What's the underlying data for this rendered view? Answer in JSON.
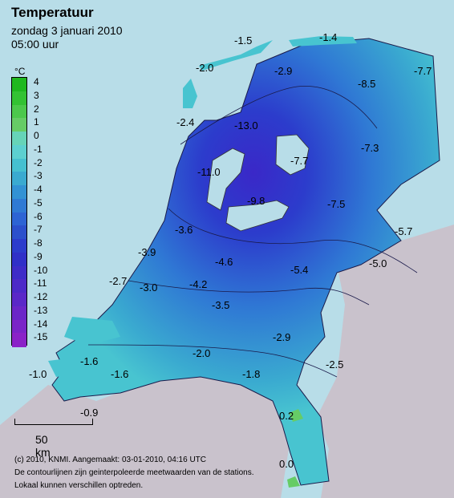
{
  "title": "Temperatuur",
  "date": "zondag 3 januari 2010",
  "time": "05:00 uur",
  "unit": "°C",
  "legend": [
    {
      "value": "4",
      "color": "#1fb81f"
    },
    {
      "value": "3",
      "color": "#33c233"
    },
    {
      "value": "2",
      "color": "#4cc84c"
    },
    {
      "value": "1",
      "color": "#66cc66"
    },
    {
      "value": "0",
      "color": "#66d4b8"
    },
    {
      "value": "-1",
      "color": "#5cd0d0"
    },
    {
      "value": "-2",
      "color": "#45c0d0"
    },
    {
      "value": "-3",
      "color": "#3aaad0"
    },
    {
      "value": "-4",
      "color": "#3292d4"
    },
    {
      "value": "-5",
      "color": "#2f7ad4"
    },
    {
      "value": "-6",
      "color": "#2d64d4"
    },
    {
      "value": "-7",
      "color": "#2b50cc"
    },
    {
      "value": "-8",
      "color": "#2c3ccc"
    },
    {
      "value": "-9",
      "color": "#3030c8"
    },
    {
      "value": "-10",
      "color": "#3e2cc8"
    },
    {
      "value": "-11",
      "color": "#4c2ac8"
    },
    {
      "value": "-12",
      "color": "#5a28c8"
    },
    {
      "value": "-13",
      "color": "#6a26c8"
    },
    {
      "value": "-14",
      "color": "#7a24c8"
    },
    {
      "value": "-15",
      "color": "#8a22c8"
    }
  ],
  "map_labels": [
    "-1.5",
    "-1.4",
    "-2.0",
    "-2.9",
    "-8.5",
    "-7.7",
    "-2.4",
    "-13.0",
    "-7.3",
    "-7.7",
    "-11.0",
    "-9.8",
    "-7.5",
    "-3.6",
    "-5.7",
    "-3.9",
    "-4.6",
    "-5.4",
    "-5.0",
    "-2.7",
    "-3.0",
    "-4.2",
    "-3.5",
    "-2.9",
    "-2.0",
    "-2.5",
    "-1.6",
    "-1.6",
    "-1.8",
    "-1.0",
    "-0.9",
    "0.2",
    "0.0"
  ],
  "scale_label": "50 km",
  "footer": [
    "(c) 2010, KNMI. Aangemaakt: 03-01-2010, 04:16 UTC",
    "De contourlijnen zijn geinterpoleerde meetwaarden van de stations.",
    "Lokaal kunnen verschillen optreden."
  ],
  "colors": {
    "sea": "#b8dde8",
    "land_abroad": "#c9c2cc"
  }
}
